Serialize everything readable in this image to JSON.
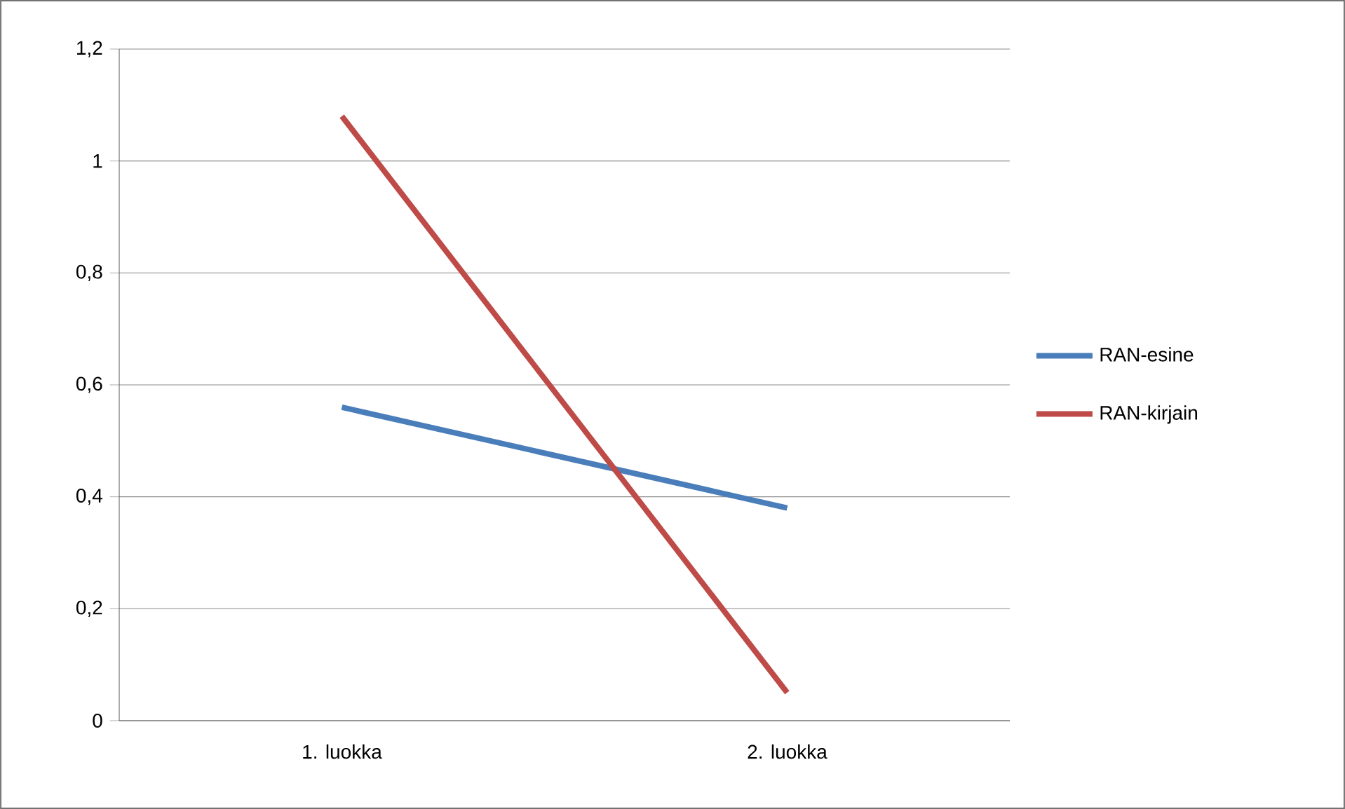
{
  "chart_data": {
    "type": "line",
    "categories": [
      "1. luokka",
      "2. luokka"
    ],
    "series": [
      {
        "name": "RAN-esine",
        "color": "#4a7ebb",
        "values": [
          0.56,
          0.38
        ]
      },
      {
        "name": "RAN-kirjain",
        "color": "#be4b48",
        "values": [
          1.08,
          0.05
        ]
      }
    ],
    "ylim": [
      0,
      1.2
    ],
    "yticks": [
      0,
      {
        "value": 0.2,
        "label": "0,2"
      },
      {
        "value": 0.4,
        "label": "0,4"
      },
      {
        "value": 0.6,
        "label": "0,6"
      },
      {
        "value": 0.8,
        "label": "0,8"
      },
      1,
      {
        "value": 1.2,
        "label": "1,2"
      }
    ],
    "grid": "y",
    "legend": "right",
    "marker": "none",
    "line_style": "solid"
  }
}
